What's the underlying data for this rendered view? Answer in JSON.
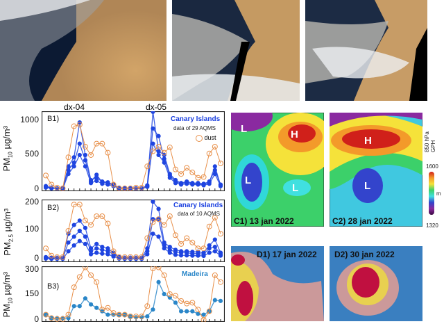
{
  "figure": {
    "map_panels": [
      {
        "label": "C1) 13 jan 2022",
        "systems": [
          "L",
          "H",
          "L",
          "L"
        ]
      },
      {
        "label": "C2) 28 jan 2022",
        "systems": [
          "H",
          "L"
        ]
      },
      {
        "label": "D1) 17 jan 2022"
      },
      {
        "label": "D2) 30 jan 2022"
      }
    ],
    "colorbar": {
      "title": "850 hPa GPH",
      "max": "1600",
      "min": "1320",
      "unit": "m"
    },
    "event_labels": [
      "dx-04",
      "dx-05"
    ]
  },
  "colors": {
    "dust": "#e8904a",
    "canary": "#1f45e0",
    "madeira": "#2a86c8",
    "dark": "#1b2a70"
  },
  "chart_data": [
    {
      "type": "line",
      "panel": "B1)",
      "ylabel": {
        "main": "PM",
        "sub": "10",
        "unit": " µg/m³"
      },
      "ylim": [
        0,
        1000
      ],
      "yticks": [
        "0",
        "500",
        "1000"
      ],
      "region": "Canary Islands",
      "note": "data of 29 AQMS",
      "legend": "dust",
      "series": [
        {
          "name": "dust",
          "marker": "open-circle",
          "values": [
            180,
            60,
            20,
            10,
            420,
            830,
            850,
            560,
            450,
            600,
            600,
            480,
            60,
            10,
            10,
            10,
            20,
            20,
            300,
            500,
            560,
            480,
            550,
            260,
            200,
            280,
            220,
            150,
            160,
            470,
            560,
            340
          ]
        },
        {
          "values": [
            40,
            20,
            10,
            10,
            300,
            420,
            880,
            450,
            120,
            150,
            100,
            90,
            60,
            20,
            10,
            10,
            10,
            10,
            50,
            1050,
            500,
            450,
            200,
            120,
            80,
            100,
            80,
            80,
            70,
            100,
            250,
            60
          ]
        },
        {
          "values": [
            30,
            15,
            8,
            8,
            250,
            350,
            600,
            380,
            100,
            190,
            90,
            80,
            50,
            15,
            8,
            8,
            8,
            8,
            40,
            800,
            700,
            400,
            180,
            100,
            70,
            90,
            70,
            70,
            60,
            90,
            300,
            50
          ]
        },
        {
          "values": [
            20,
            10,
            5,
            5,
            200,
            300,
            450,
            300,
            80,
            110,
            70,
            60,
            40,
            10,
            5,
            5,
            5,
            5,
            30,
            600,
            450,
            350,
            150,
            80,
            60,
            70,
            60,
            60,
            50,
            70,
            200,
            40
          ]
        }
      ]
    },
    {
      "type": "line",
      "panel": "B2)",
      "ylabel": {
        "main": "PM",
        "sub": "2.5",
        "unit": " µg/m³"
      },
      "ylim": [
        0,
        200
      ],
      "yticks": [
        "0",
        "100",
        "200"
      ],
      "region": "Canary Islands",
      "note": "data of 10 AQMS",
      "series": [
        {
          "name": "dust",
          "marker": "open-circle",
          "values": [
            40,
            15,
            10,
            10,
            100,
            190,
            190,
            135,
            120,
            150,
            150,
            125,
            30,
            10,
            10,
            10,
            10,
            10,
            75,
            130,
            140,
            120,
            150,
            85,
            55,
            75,
            60,
            40,
            40,
            115,
            145,
            90
          ]
        },
        {
          "values": [
            10,
            8,
            8,
            8,
            90,
            120,
            135,
            110,
            40,
            55,
            45,
            40,
            25,
            10,
            8,
            8,
            8,
            8,
            40,
            200,
            175,
            60,
            45,
            35,
            30,
            30,
            28,
            28,
            25,
            50,
            70,
            25
          ]
        },
        {
          "values": [
            8,
            6,
            6,
            6,
            60,
            80,
            100,
            80,
            30,
            40,
            35,
            30,
            20,
            8,
            6,
            6,
            6,
            6,
            30,
            140,
            140,
            50,
            35,
            28,
            25,
            25,
            22,
            22,
            20,
            40,
            45,
            20
          ]
        },
        {
          "values": [
            5,
            4,
            4,
            4,
            30,
            50,
            65,
            55,
            20,
            25,
            22,
            20,
            12,
            5,
            4,
            4,
            4,
            4,
            20,
            90,
            80,
            40,
            25,
            18,
            16,
            16,
            15,
            15,
            14,
            25,
            30,
            15
          ]
        }
      ]
    },
    {
      "type": "line",
      "panel": "B3)",
      "ylabel": {
        "main": "PM",
        "sub": "10",
        "unit": " µg/m³"
      },
      "ylim": [
        0,
        300
      ],
      "yticks": [
        "0",
        "150",
        "300"
      ],
      "region": "Madeira",
      "series": [
        {
          "name": "dust",
          "marker": "open-circle",
          "values": [
            30,
            10,
            5,
            5,
            30,
            190,
            250,
            310,
            260,
            220,
            60,
            70,
            40,
            30,
            30,
            20,
            20,
            20,
            80,
            300,
            310,
            260,
            150,
            140,
            110,
            95,
            100,
            60,
            0,
            50,
            260,
            220
          ]
        },
        {
          "name": "Madeira",
          "values": [
            30,
            10,
            10,
            10,
            10,
            80,
            80,
            125,
            90,
            70,
            50,
            30,
            30,
            30,
            30,
            20,
            15,
            15,
            20,
            60,
            220,
            150,
            130,
            100,
            50,
            50,
            50,
            35,
            30,
            50,
            115,
            110
          ]
        }
      ]
    }
  ]
}
